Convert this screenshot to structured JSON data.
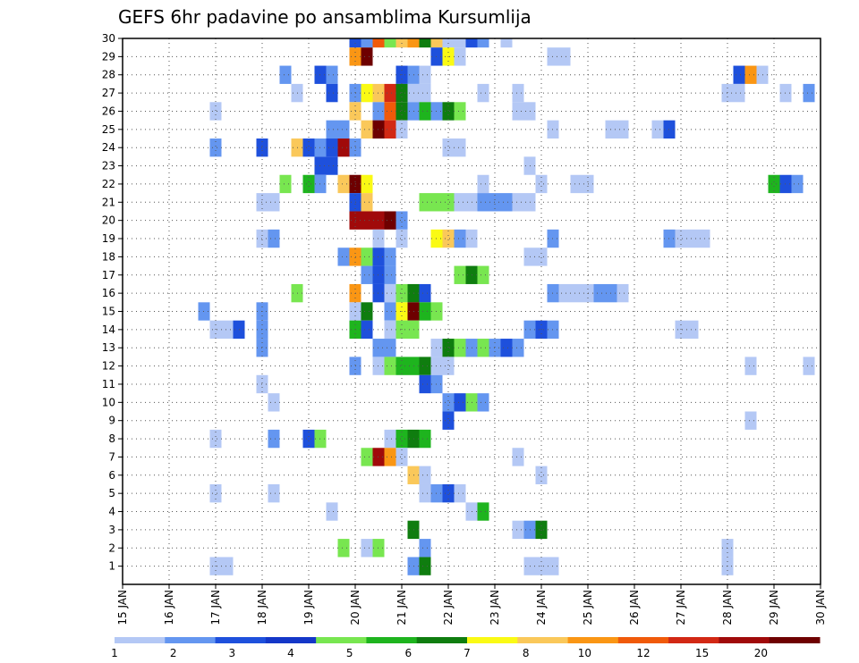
{
  "chart_data": {
    "type": "heatmap",
    "title": "GEFS 6hr padavine po ansamblima Kursumlija",
    "xlabel": "",
    "ylabel": "",
    "x_ticks": [
      "15 JAN",
      "16 JAN",
      "17 JAN",
      "18 JAN",
      "19 JAN",
      "20 JAN",
      "21 JAN",
      "22 JAN",
      "23 JAN",
      "24 JAN",
      "25 JAN",
      "26 JAN",
      "27 JAN",
      "28 JAN",
      "29 JAN",
      "30 JAN"
    ],
    "y_ticks": [
      "1",
      "2",
      "3",
      "4",
      "5",
      "6",
      "7",
      "8",
      "9",
      "10",
      "11",
      "12",
      "13",
      "14",
      "15",
      "16",
      "17",
      "18",
      "19",
      "20",
      "21",
      "22",
      "23",
      "24",
      "25",
      "26",
      "27",
      "28",
      "29",
      "30"
    ],
    "xlim": [
      0,
      60
    ],
    "ylim": [
      0,
      30
    ],
    "x_unit": "6h steps from 15 JAN 00Z",
    "y_unit": "ensemble member",
    "grid": true,
    "colorbar": {
      "labels": [
        "1",
        "2",
        "3",
        "4",
        "5",
        "6",
        "7",
        "8",
        "10",
        "12",
        "15",
        "20"
      ],
      "colors": [
        "#b4c8f5",
        "#6496f0",
        "#1e50dc",
        "#1437c8",
        "#78e650",
        "#1eb41e",
        "#0f7d0f",
        "#fafa14",
        "#fac85a",
        "#fa9614",
        "#f05a0a",
        "#d22814",
        "#a00a0a",
        "#6e0000"
      ]
    },
    "cells": [
      {
        "m": 30,
        "t": 20,
        "c": 3
      },
      {
        "m": 30,
        "t": 21,
        "c": 2
      },
      {
        "m": 30,
        "t": 22,
        "c": 11
      },
      {
        "m": 30,
        "t": 23,
        "c": 5
      },
      {
        "m": 30,
        "t": 24,
        "c": 9
      },
      {
        "m": 30,
        "t": 25,
        "c": 10
      },
      {
        "m": 30,
        "t": 26,
        "c": 7
      },
      {
        "m": 30,
        "t": 27,
        "c": 9
      },
      {
        "m": 30,
        "t": 28,
        "c": 1
      },
      {
        "m": 30,
        "t": 29,
        "c": 1
      },
      {
        "m": 30,
        "t": 30,
        "c": 3
      },
      {
        "m": 30,
        "t": 31,
        "c": 2
      },
      {
        "m": 30,
        "t": 33,
        "c": 1
      },
      {
        "m": 29,
        "t": 20,
        "c": 10
      },
      {
        "m": 29,
        "t": 21,
        "c": 14
      },
      {
        "m": 29,
        "t": 27,
        "c": 3
      },
      {
        "m": 29,
        "t": 28,
        "c": 8
      },
      {
        "m": 29,
        "t": 29,
        "c": 1
      },
      {
        "m": 29,
        "t": 37,
        "c": 1
      },
      {
        "m": 29,
        "t": 38,
        "c": 1
      },
      {
        "m": 28,
        "t": 14,
        "c": 2
      },
      {
        "m": 28,
        "t": 17,
        "c": 3
      },
      {
        "m": 28,
        "t": 18,
        "c": 2
      },
      {
        "m": 28,
        "t": 24,
        "c": 3
      },
      {
        "m": 28,
        "t": 25,
        "c": 2
      },
      {
        "m": 28,
        "t": 26,
        "c": 1
      },
      {
        "m": 28,
        "t": 53,
        "c": 3
      },
      {
        "m": 28,
        "t": 54,
        "c": 10
      },
      {
        "m": 28,
        "t": 55,
        "c": 1
      },
      {
        "m": 27,
        "t": 15,
        "c": 1
      },
      {
        "m": 27,
        "t": 18,
        "c": 3
      },
      {
        "m": 27,
        "t": 20,
        "c": 2
      },
      {
        "m": 27,
        "t": 21,
        "c": 8
      },
      {
        "m": 27,
        "t": 22,
        "c": 9
      },
      {
        "m": 27,
        "t": 23,
        "c": 12
      },
      {
        "m": 27,
        "t": 24,
        "c": 7
      },
      {
        "m": 27,
        "t": 25,
        "c": 1
      },
      {
        "m": 27,
        "t": 26,
        "c": 1
      },
      {
        "m": 27,
        "t": 31,
        "c": 1
      },
      {
        "m": 27,
        "t": 34,
        "c": 1
      },
      {
        "m": 27,
        "t": 52,
        "c": 1
      },
      {
        "m": 27,
        "t": 53,
        "c": 1
      },
      {
        "m": 27,
        "t": 57,
        "c": 1
      },
      {
        "m": 27,
        "t": 59,
        "c": 2
      },
      {
        "m": 26,
        "t": 8,
        "c": 1
      },
      {
        "m": 26,
        "t": 20,
        "c": 9
      },
      {
        "m": 26,
        "t": 22,
        "c": 2
      },
      {
        "m": 26,
        "t": 23,
        "c": 11
      },
      {
        "m": 26,
        "t": 24,
        "c": 7
      },
      {
        "m": 26,
        "t": 25,
        "c": 2
      },
      {
        "m": 26,
        "t": 26,
        "c": 6
      },
      {
        "m": 26,
        "t": 27,
        "c": 2
      },
      {
        "m": 26,
        "t": 28,
        "c": 7
      },
      {
        "m": 26,
        "t": 29,
        "c": 5
      },
      {
        "m": 26,
        "t": 34,
        "c": 1
      },
      {
        "m": 26,
        "t": 35,
        "c": 1
      },
      {
        "m": 25,
        "t": 18,
        "c": 2
      },
      {
        "m": 25,
        "t": 19,
        "c": 2
      },
      {
        "m": 25,
        "t": 21,
        "c": 9
      },
      {
        "m": 25,
        "t": 22,
        "c": 14
      },
      {
        "m": 25,
        "t": 23,
        "c": 12
      },
      {
        "m": 25,
        "t": 24,
        "c": 1
      },
      {
        "m": 25,
        "t": 37,
        "c": 1
      },
      {
        "m": 25,
        "t": 42,
        "c": 1
      },
      {
        "m": 25,
        "t": 43,
        "c": 1
      },
      {
        "m": 25,
        "t": 46,
        "c": 1
      },
      {
        "m": 25,
        "t": 47,
        "c": 3
      },
      {
        "m": 24,
        "t": 8,
        "c": 2
      },
      {
        "m": 24,
        "t": 12,
        "c": 3
      },
      {
        "m": 24,
        "t": 15,
        "c": 9
      },
      {
        "m": 24,
        "t": 16,
        "c": 3
      },
      {
        "m": 24,
        "t": 17,
        "c": 2
      },
      {
        "m": 24,
        "t": 18,
        "c": 3
      },
      {
        "m": 24,
        "t": 19,
        "c": 13
      },
      {
        "m": 24,
        "t": 20,
        "c": 2
      },
      {
        "m": 24,
        "t": 28,
        "c": 1
      },
      {
        "m": 24,
        "t": 29,
        "c": 1
      },
      {
        "m": 23,
        "t": 17,
        "c": 3
      },
      {
        "m": 23,
        "t": 18,
        "c": 3
      },
      {
        "m": 23,
        "t": 35,
        "c": 1
      },
      {
        "m": 22,
        "t": 14,
        "c": 5
      },
      {
        "m": 22,
        "t": 16,
        "c": 6
      },
      {
        "m": 22,
        "t": 17,
        "c": 2
      },
      {
        "m": 22,
        "t": 19,
        "c": 9
      },
      {
        "m": 22,
        "t": 20,
        "c": 14
      },
      {
        "m": 22,
        "t": 21,
        "c": 8
      },
      {
        "m": 22,
        "t": 31,
        "c": 1
      },
      {
        "m": 22,
        "t": 36,
        "c": 1
      },
      {
        "m": 22,
        "t": 39,
        "c": 1
      },
      {
        "m": 22,
        "t": 40,
        "c": 1
      },
      {
        "m": 22,
        "t": 56,
        "c": 6
      },
      {
        "m": 22,
        "t": 57,
        "c": 3
      },
      {
        "m": 22,
        "t": 58,
        "c": 2
      },
      {
        "m": 21,
        "t": 12,
        "c": 1
      },
      {
        "m": 21,
        "t": 13,
        "c": 1
      },
      {
        "m": 21,
        "t": 20,
        "c": 3
      },
      {
        "m": 21,
        "t": 21,
        "c": 9
      },
      {
        "m": 21,
        "t": 26,
        "c": 5
      },
      {
        "m": 21,
        "t": 27,
        "c": 5
      },
      {
        "m": 21,
        "t": 28,
        "c": 5
      },
      {
        "m": 21,
        "t": 29,
        "c": 1
      },
      {
        "m": 21,
        "t": 30,
        "c": 1
      },
      {
        "m": 21,
        "t": 31,
        "c": 2
      },
      {
        "m": 21,
        "t": 32,
        "c": 2
      },
      {
        "m": 21,
        "t": 33,
        "c": 2
      },
      {
        "m": 21,
        "t": 34,
        "c": 1
      },
      {
        "m": 21,
        "t": 35,
        "c": 1
      },
      {
        "m": 20,
        "t": 20,
        "c": 13
      },
      {
        "m": 20,
        "t": 21,
        "c": 13
      },
      {
        "m": 20,
        "t": 22,
        "c": 13
      },
      {
        "m": 20,
        "t": 23,
        "c": 14
      },
      {
        "m": 20,
        "t": 24,
        "c": 2
      },
      {
        "m": 19,
        "t": 12,
        "c": 1
      },
      {
        "m": 19,
        "t": 13,
        "c": 2
      },
      {
        "m": 19,
        "t": 22,
        "c": 1
      },
      {
        "m": 19,
        "t": 24,
        "c": 1
      },
      {
        "m": 19,
        "t": 27,
        "c": 8
      },
      {
        "m": 19,
        "t": 28,
        "c": 9
      },
      {
        "m": 19,
        "t": 29,
        "c": 2
      },
      {
        "m": 19,
        "t": 30,
        "c": 1
      },
      {
        "m": 19,
        "t": 37,
        "c": 2
      },
      {
        "m": 19,
        "t": 47,
        "c": 2
      },
      {
        "m": 19,
        "t": 48,
        "c": 1
      },
      {
        "m": 19,
        "t": 49,
        "c": 1
      },
      {
        "m": 19,
        "t": 50,
        "c": 1
      },
      {
        "m": 18,
        "t": 19,
        "c": 2
      },
      {
        "m": 18,
        "t": 20,
        "c": 10
      },
      {
        "m": 18,
        "t": 21,
        "c": 5
      },
      {
        "m": 18,
        "t": 22,
        "c": 3
      },
      {
        "m": 18,
        "t": 23,
        "c": 2
      },
      {
        "m": 18,
        "t": 35,
        "c": 1
      },
      {
        "m": 18,
        "t": 36,
        "c": 1
      },
      {
        "m": 17,
        "t": 21,
        "c": 2
      },
      {
        "m": 17,
        "t": 22,
        "c": 3
      },
      {
        "m": 17,
        "t": 23,
        "c": 2
      },
      {
        "m": 17,
        "t": 29,
        "c": 5
      },
      {
        "m": 17,
        "t": 30,
        "c": 7
      },
      {
        "m": 17,
        "t": 31,
        "c": 5
      },
      {
        "m": 16,
        "t": 15,
        "c": 5
      },
      {
        "m": 16,
        "t": 20,
        "c": 10
      },
      {
        "m": 16,
        "t": 22,
        "c": 3
      },
      {
        "m": 16,
        "t": 23,
        "c": 1
      },
      {
        "m": 16,
        "t": 24,
        "c": 5
      },
      {
        "m": 16,
        "t": 25,
        "c": 7
      },
      {
        "m": 16,
        "t": 26,
        "c": 3
      },
      {
        "m": 16,
        "t": 37,
        "c": 2
      },
      {
        "m": 16,
        "t": 38,
        "c": 1
      },
      {
        "m": 16,
        "t": 39,
        "c": 1
      },
      {
        "m": 16,
        "t": 40,
        "c": 1
      },
      {
        "m": 16,
        "t": 41,
        "c": 2
      },
      {
        "m": 16,
        "t": 42,
        "c": 2
      },
      {
        "m": 16,
        "t": 43,
        "c": 1
      },
      {
        "m": 15,
        "t": 7,
        "c": 2
      },
      {
        "m": 15,
        "t": 12,
        "c": 2
      },
      {
        "m": 15,
        "t": 20,
        "c": 1
      },
      {
        "m": 15,
        "t": 21,
        "c": 7
      },
      {
        "m": 15,
        "t": 23,
        "c": 2
      },
      {
        "m": 15,
        "t": 24,
        "c": 8
      },
      {
        "m": 15,
        "t": 25,
        "c": 14
      },
      {
        "m": 15,
        "t": 26,
        "c": 6
      },
      {
        "m": 15,
        "t": 27,
        "c": 5
      },
      {
        "m": 14,
        "t": 8,
        "c": 1
      },
      {
        "m": 14,
        "t": 9,
        "c": 1
      },
      {
        "m": 14,
        "t": 10,
        "c": 3
      },
      {
        "m": 14,
        "t": 12,
        "c": 2
      },
      {
        "m": 14,
        "t": 20,
        "c": 6
      },
      {
        "m": 14,
        "t": 21,
        "c": 3
      },
      {
        "m": 14,
        "t": 23,
        "c": 1
      },
      {
        "m": 14,
        "t": 24,
        "c": 5
      },
      {
        "m": 14,
        "t": 25,
        "c": 5
      },
      {
        "m": 14,
        "t": 35,
        "c": 2
      },
      {
        "m": 14,
        "t": 36,
        "c": 3
      },
      {
        "m": 14,
        "t": 37,
        "c": 2
      },
      {
        "m": 14,
        "t": 48,
        "c": 1
      },
      {
        "m": 14,
        "t": 49,
        "c": 1
      },
      {
        "m": 13,
        "t": 12,
        "c": 2
      },
      {
        "m": 13,
        "t": 22,
        "c": 2
      },
      {
        "m": 13,
        "t": 23,
        "c": 2
      },
      {
        "m": 13,
        "t": 27,
        "c": 1
      },
      {
        "m": 13,
        "t": 28,
        "c": 7
      },
      {
        "m": 13,
        "t": 29,
        "c": 5
      },
      {
        "m": 13,
        "t": 30,
        "c": 2
      },
      {
        "m": 13,
        "t": 31,
        "c": 5
      },
      {
        "m": 13,
        "t": 32,
        "c": 2
      },
      {
        "m": 13,
        "t": 33,
        "c": 3
      },
      {
        "m": 13,
        "t": 34,
        "c": 2
      },
      {
        "m": 12,
        "t": 20,
        "c": 2
      },
      {
        "m": 12,
        "t": 22,
        "c": 1
      },
      {
        "m": 12,
        "t": 23,
        "c": 5
      },
      {
        "m": 12,
        "t": 24,
        "c": 6
      },
      {
        "m": 12,
        "t": 25,
        "c": 6
      },
      {
        "m": 12,
        "t": 26,
        "c": 7
      },
      {
        "m": 12,
        "t": 27,
        "c": 1
      },
      {
        "m": 12,
        "t": 28,
        "c": 1
      },
      {
        "m": 12,
        "t": 54,
        "c": 1
      },
      {
        "m": 12,
        "t": 59,
        "c": 1
      },
      {
        "m": 11,
        "t": 12,
        "c": 1
      },
      {
        "m": 11,
        "t": 26,
        "c": 3
      },
      {
        "m": 11,
        "t": 27,
        "c": 2
      },
      {
        "m": 10,
        "t": 13,
        "c": 1
      },
      {
        "m": 10,
        "t": 28,
        "c": 2
      },
      {
        "m": 10,
        "t": 29,
        "c": 3
      },
      {
        "m": 10,
        "t": 30,
        "c": 5
      },
      {
        "m": 10,
        "t": 31,
        "c": 2
      },
      {
        "m": 9,
        "t": 28,
        "c": 3
      },
      {
        "m": 9,
        "t": 54,
        "c": 1
      },
      {
        "m": 8,
        "t": 8,
        "c": 1
      },
      {
        "m": 8,
        "t": 13,
        "c": 2
      },
      {
        "m": 8,
        "t": 16,
        "c": 3
      },
      {
        "m": 8,
        "t": 17,
        "c": 5
      },
      {
        "m": 8,
        "t": 23,
        "c": 1
      },
      {
        "m": 8,
        "t": 24,
        "c": 6
      },
      {
        "m": 8,
        "t": 25,
        "c": 7
      },
      {
        "m": 8,
        "t": 26,
        "c": 6
      },
      {
        "m": 7,
        "t": 21,
        "c": 5
      },
      {
        "m": 7,
        "t": 22,
        "c": 13
      },
      {
        "m": 7,
        "t": 23,
        "c": 10
      },
      {
        "m": 7,
        "t": 24,
        "c": 1
      },
      {
        "m": 7,
        "t": 34,
        "c": 1
      },
      {
        "m": 6,
        "t": 25,
        "c": 9
      },
      {
        "m": 6,
        "t": 26,
        "c": 1
      },
      {
        "m": 6,
        "t": 36,
        "c": 1
      },
      {
        "m": 5,
        "t": 8,
        "c": 1
      },
      {
        "m": 5,
        "t": 13,
        "c": 1
      },
      {
        "m": 5,
        "t": 26,
        "c": 1
      },
      {
        "m": 5,
        "t": 27,
        "c": 2
      },
      {
        "m": 5,
        "t": 28,
        "c": 3
      },
      {
        "m": 5,
        "t": 29,
        "c": 1
      },
      {
        "m": 4,
        "t": 18,
        "c": 1
      },
      {
        "m": 4,
        "t": 30,
        "c": 1
      },
      {
        "m": 4,
        "t": 31,
        "c": 6
      },
      {
        "m": 3,
        "t": 25,
        "c": 7
      },
      {
        "m": 3,
        "t": 34,
        "c": 1
      },
      {
        "m": 3,
        "t": 35,
        "c": 2
      },
      {
        "m": 3,
        "t": 36,
        "c": 7
      },
      {
        "m": 2,
        "t": 19,
        "c": 5
      },
      {
        "m": 2,
        "t": 21,
        "c": 1
      },
      {
        "m": 2,
        "t": 22,
        "c": 5
      },
      {
        "m": 2,
        "t": 26,
        "c": 2
      },
      {
        "m": 2,
        "t": 52,
        "c": 1
      },
      {
        "m": 1,
        "t": 8,
        "c": 1
      },
      {
        "m": 1,
        "t": 9,
        "c": 1
      },
      {
        "m": 1,
        "t": 25,
        "c": 2
      },
      {
        "m": 1,
        "t": 26,
        "c": 7
      },
      {
        "m": 1,
        "t": 35,
        "c": 1
      },
      {
        "m": 1,
        "t": 36,
        "c": 1
      },
      {
        "m": 1,
        "t": 37,
        "c": 1
      },
      {
        "m": 1,
        "t": 52,
        "c": 1
      }
    ]
  }
}
